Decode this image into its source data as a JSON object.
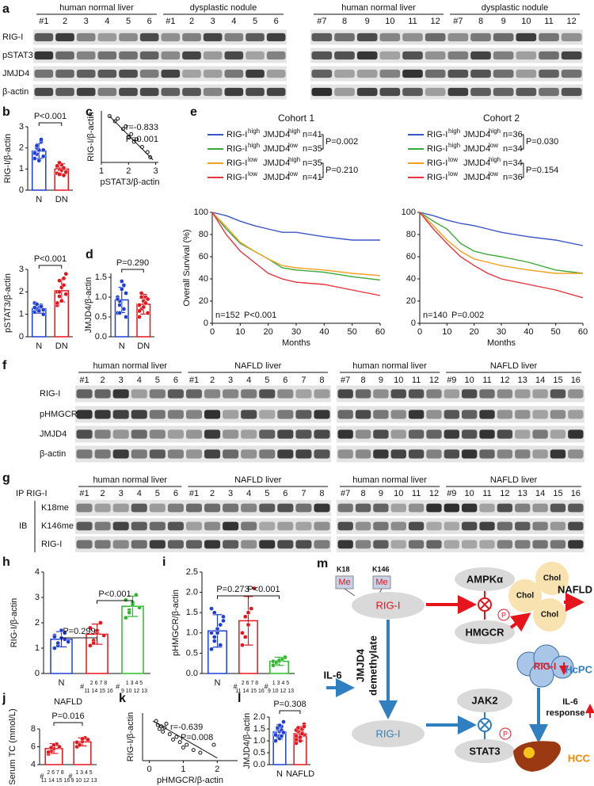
{
  "letters": [
    "a",
    "b",
    "c",
    "d",
    "e",
    "f",
    "g",
    "h",
    "i",
    "j",
    "k",
    "l",
    "m"
  ],
  "blots": {
    "a_left": {
      "headers": [
        "human normal liver",
        "dysplastic nodule"
      ],
      "lanes": [
        [
          "#1",
          "2",
          "3",
          "4",
          "5",
          "6"
        ],
        [
          "#1",
          "2",
          "3",
          "4",
          "5",
          "6"
        ]
      ],
      "rows": [
        "RIG-I",
        "pSTAT3",
        "JMJD4",
        "β-actin"
      ]
    },
    "a_right": {
      "headers": [
        "human normal liver",
        "dysplastic nodule"
      ],
      "lanes": [
        [
          "#7",
          "8",
          "9",
          "10",
          "11",
          "12"
        ],
        [
          "#7",
          "8",
          "9",
          "10",
          "11",
          "12"
        ]
      ]
    },
    "f_left": {
      "headers": [
        "human normal liver",
        "NAFLD liver"
      ],
      "lanes": [
        [
          "#1",
          "2",
          "3",
          "4",
          "5",
          "6"
        ],
        [
          "#1",
          "2",
          "3",
          "4",
          "5",
          "6",
          "7",
          "8"
        ]
      ],
      "rows": [
        "RIG-I",
        "pHMGCR",
        "JMJD4",
        "β-actin"
      ]
    },
    "f_right": {
      "headers": [
        "human normal liver",
        "NAFLD liver"
      ],
      "lanes": [
        [
          "#7",
          "8",
          "9",
          "10",
          "11",
          "12"
        ],
        [
          "#9",
          "10",
          "11",
          "12",
          "13",
          "14",
          "15",
          "16"
        ]
      ]
    },
    "g_left": {
      "headers": [
        "human normal liver",
        "NAFLD liver"
      ],
      "lanes": [
        [
          "#1",
          "2",
          "3",
          "4",
          "5",
          "6"
        ],
        [
          "#1",
          "2",
          "3",
          "4",
          "5",
          "6",
          "7",
          "8"
        ]
      ],
      "rows": [
        "K18me",
        "K146me",
        "RIG-I"
      ],
      "ip_label": "IP RIG-I",
      "ib_label": "IB"
    },
    "g_right": {
      "headers": [
        "human normal liver",
        "NAFLD liver"
      ],
      "lanes": [
        [
          "#7",
          "8",
          "9",
          "10",
          "11",
          "12"
        ],
        [
          "#9",
          "10",
          "11",
          "12",
          "13",
          "14",
          "15",
          "16"
        ]
      ]
    }
  },
  "chart_data": [
    {
      "type": "bar",
      "ylabel": "RIG-I/β-actin",
      "categories": [
        "N",
        "DN"
      ],
      "values": [
        1.85,
        1.0
      ],
      "errors": [
        0.35,
        0.25
      ],
      "colors": [
        "#1f3fd6",
        "#e8141c"
      ],
      "points": [
        [
          1.5,
          1.7,
          1.9,
          2.3,
          1.6,
          1.8,
          2.0,
          1.4,
          2.4,
          1.9,
          1.75,
          2.1
        ],
        [
          0.8,
          1.0,
          1.2,
          0.7,
          0.9,
          1.1,
          1.3,
          0.95,
          1.05,
          0.85,
          1.15,
          0.75
        ]
      ],
      "ylim": [
        0,
        3
      ],
      "yticks": [
        0,
        1,
        2,
        3
      ],
      "annotations": [
        "P<0.001"
      ]
    },
    {
      "type": "scatter",
      "ylabel": "RIG-I/β-actin",
      "xlabel": "pSTAT3/β-actin",
      "x": [
        1.3,
        1.5,
        1.6,
        1.8,
        1.9,
        2.0,
        2.1,
        2.2,
        2.3,
        2.5,
        2.7,
        2.8
      ],
      "values": [
        2.4,
        2.2,
        2.3,
        1.9,
        2.0,
        1.6,
        1.7,
        1.4,
        1.5,
        1.2,
        1.0,
        0.8
      ],
      "fit_line": {
        "x": [
          1.3,
          2.9
        ],
        "values": [
          2.4,
          0.7
        ]
      },
      "xlim": [
        1,
        3.1
      ],
      "ylim": [
        0.6,
        2.6
      ],
      "xticks": [
        1,
        2,
        3
      ],
      "annotations": [
        "r=-0.833",
        "P=0.001"
      ]
    },
    {
      "type": "bar",
      "ylabel": "pSTAT3/β-actin",
      "categories": [
        "N",
        "DN"
      ],
      "values": [
        1.25,
        2.05
      ],
      "errors": [
        0.2,
        0.5
      ],
      "colors": [
        "#1f3fd6",
        "#e8141c"
      ],
      "points": [
        [
          1.1,
          1.2,
          1.3,
          1.4,
          1.0,
          1.5,
          1.25,
          1.15,
          1.35,
          1.2,
          1.3,
          1.45
        ],
        [
          1.4,
          1.8,
          2.2,
          2.6,
          1.9,
          2.0,
          2.5,
          1.6,
          2.3,
          2.8,
          1.5,
          2.0
        ]
      ],
      "ylim": [
        0,
        3
      ],
      "yticks": [
        0,
        1,
        2,
        3
      ],
      "annotations": [
        "P<0.001"
      ]
    },
    {
      "type": "bar",
      "ylabel": "JMJD4/β-actin",
      "categories": [
        "N",
        "DN"
      ],
      "values": [
        0.93,
        0.82
      ],
      "errors": [
        0.32,
        0.25
      ],
      "colors": [
        "#1f3fd6",
        "#e8141c"
      ],
      "points": [
        [
          0.6,
          0.9,
          1.2,
          1.3,
          0.5,
          1.0,
          0.8,
          1.4,
          0.7,
          1.1,
          0.95,
          0.6
        ],
        [
          0.5,
          0.7,
          0.9,
          1.0,
          0.6,
          0.8,
          1.1,
          0.75,
          0.85,
          0.95,
          0.65,
          1.0
        ]
      ],
      "ylim": [
        0,
        1.6
      ],
      "yticks": [
        {
          "value": 0,
          "label": "0.0"
        },
        {
          "value": 0.5,
          "label": "0.5"
        },
        {
          "value": 1,
          "label": "1.0"
        },
        {
          "value": 1.5,
          "label": "1.5"
        }
      ],
      "annotations": [
        "P=0.290"
      ]
    },
    {
      "type": "line",
      "title": "Cohort 1",
      "ylabel": "Overall Survival (%)",
      "xlabel": "Months",
      "x": [
        0,
        5,
        10,
        15,
        20,
        25,
        30,
        40,
        50,
        60
      ],
      "xlim": [
        0,
        60
      ],
      "xticks": [
        0,
        10,
        20,
        30,
        40,
        50,
        60
      ],
      "ylim": [
        0,
        100
      ],
      "yticks": [
        0,
        20,
        40,
        60,
        80,
        100
      ],
      "series": [
        {
          "name": [
            "RIG-I",
            "high",
            "JMJD4",
            "high"
          ],
          "n_label": "n=41",
          "color": "#3b55c8",
          "values": [
            100,
            97,
            92,
            88,
            85,
            82,
            82,
            78,
            75,
            75
          ]
        },
        {
          "name": [
            "RIG-I",
            "high",
            "JMJD4",
            "low"
          ],
          "n_label": "n=35",
          "color": "#3aa83a",
          "values": [
            100,
            85,
            72,
            65,
            58,
            50,
            48,
            46,
            42,
            39
          ]
        },
        {
          "name": [
            "RIG-I",
            "low",
            "JMJD4",
            "high"
          ],
          "n_label": "n=35",
          "color": "#f0a020",
          "values": [
            100,
            87,
            73,
            65,
            58,
            52,
            50,
            48,
            45,
            43
          ]
        },
        {
          "name": [
            "RIG-I",
            "low",
            "JMJD4",
            "low"
          ],
          "n_label": "n=41",
          "color": "#e8323c",
          "values": [
            100,
            80,
            65,
            55,
            45,
            40,
            37,
            35,
            30,
            25
          ]
        }
      ],
      "annotations": [
        "P=0.002",
        "P=0.210",
        "n=152",
        "P<0.001"
      ]
    },
    {
      "type": "line",
      "title": "Cohort 2",
      "xlabel": "Months",
      "x": [
        0,
        5,
        10,
        15,
        20,
        25,
        30,
        40,
        50,
        60
      ],
      "xlim": [
        0,
        60
      ],
      "xticks": [
        0,
        10,
        20,
        30,
        40,
        50,
        60
      ],
      "ylim": [
        0,
        100
      ],
      "yticks": [
        0,
        20,
        40,
        60,
        80,
        100
      ],
      "series": [
        {
          "name": [
            "RIG-I",
            "high",
            "JMJD4",
            "high"
          ],
          "n_label": "n=36",
          "color": "#3b55c8",
          "values": [
            100,
            97,
            93,
            90,
            88,
            85,
            82,
            78,
            75,
            70
          ]
        },
        {
          "name": [
            "RIG-I",
            "high",
            "JMJD4",
            "low"
          ],
          "n_label": "n=34",
          "color": "#3aa83a",
          "values": [
            100,
            92,
            85,
            72,
            65,
            62,
            60,
            55,
            48,
            45
          ]
        },
        {
          "name": [
            "RIG-I",
            "low",
            "JMJD4",
            "high"
          ],
          "n_label": "n=34",
          "color": "#f0a020",
          "values": [
            100,
            88,
            75,
            65,
            58,
            55,
            52,
            48,
            45,
            45
          ]
        },
        {
          "name": [
            "RIG-I",
            "low",
            "JMJD4",
            "low"
          ],
          "n_label": "n=36",
          "color": "#e8323c",
          "values": [
            100,
            85,
            72,
            60,
            52,
            45,
            40,
            35,
            30,
            23
          ]
        }
      ],
      "annotations": [
        "P=0.030",
        "P=0.154",
        "n=140",
        "P=0.002"
      ]
    },
    {
      "type": "bar",
      "ylabel": "RIG-I/β-actin",
      "categories": [
        "N",
        [
          "#",
          "2 6 7 8",
          "11 14 15 16"
        ],
        [
          "#",
          "1 3 4 5",
          "9 10 12 13"
        ]
      ],
      "values": [
        1.35,
        1.55,
        2.65
      ],
      "errors": [
        0.3,
        0.4,
        0.4
      ],
      "colors": [
        "#1f3fd6",
        "#e8141c",
        "#2db82d"
      ],
      "points": [
        [
          1.0,
          1.2,
          1.4,
          1.6,
          1.3,
          1.5,
          1.1,
          1.7,
          1.35,
          1.25,
          1.45,
          1.2
        ],
        [
          1.1,
          1.3,
          1.6,
          2.0,
          1.5,
          1.8,
          1.2,
          1.7
        ],
        [
          2.2,
          2.5,
          2.8,
          3.1,
          2.6,
          2.9,
          2.4,
          2.7
        ]
      ],
      "ylim": [
        0,
        4
      ],
      "yticks": [
        0,
        1,
        2,
        3,
        4
      ],
      "annotations": [
        "P=0.299",
        "P<0.001"
      ]
    },
    {
      "type": "bar",
      "ylabel": "pHMGCR/β-actin",
      "categories": [
        "N",
        [
          "#",
          "2 6 7 8",
          "11 14 15 16"
        ],
        [
          "#",
          "1 3 4 5",
          "9 10 12 13"
        ]
      ],
      "values": [
        1.05,
        1.3,
        0.3
      ],
      "errors": [
        0.4,
        0.6,
        0.1
      ],
      "colors": [
        "#1f3fd6",
        "#e8141c",
        "#2db82d"
      ],
      "points": [
        [
          0.6,
          0.8,
          1.0,
          1.2,
          1.4,
          1.6,
          0.9,
          1.1,
          0.7,
          1.3,
          1.0,
          1.5
        ],
        [
          0.7,
          0.9,
          1.2,
          1.6,
          2.1,
          1.0,
          1.4,
          1.5
        ],
        [
          0.2,
          0.25,
          0.3,
          0.35,
          0.4,
          0.3,
          0.28,
          0.32
        ]
      ],
      "ylim": [
        0,
        2.5
      ],
      "yticks": [
        {
          "value": 0,
          "label": "0.0"
        },
        {
          "value": 0.5,
          "label": "0.5"
        },
        {
          "value": 1,
          "label": "1.0"
        },
        {
          "value": 1.5,
          "label": "1.5"
        },
        {
          "value": 2,
          "label": "2.0"
        },
        {
          "value": 2.5,
          "label": "2.5"
        }
      ],
      "annotations": [
        "P=0.273",
        "P<0.001"
      ]
    },
    {
      "type": "bar",
      "title": "NAFLD",
      "ylabel": "Serum TC (mmol/L)",
      "categories": [
        [
          "#",
          "2 6 7 8",
          "11 14 15 16"
        ],
        [
          "#",
          "1 3 4 5",
          "9 10 12 13"
        ]
      ],
      "values": [
        5.8,
        6.55
      ],
      "errors": [
        0.55,
        0.45
      ],
      "colors": [
        "#e8141c",
        "#e8141c"
      ],
      "points": [
        [
          5.2,
          5.5,
          5.8,
          6.3,
          6.0,
          5.4,
          5.9,
          6.2
        ],
        [
          6.0,
          6.3,
          6.6,
          7.0,
          6.8,
          6.5,
          6.2,
          6.9
        ]
      ],
      "ylim": [
        4,
        8
      ],
      "yticks": [
        4,
        6,
        8
      ],
      "annotations": [
        "P=0.016"
      ]
    },
    {
      "type": "scatter",
      "ylabel": "RIG-I/β-actin",
      "xlabel": "pHMGCR/β-actin",
      "x": [
        0.2,
        0.3,
        0.35,
        0.4,
        0.5,
        0.6,
        0.7,
        0.8,
        0.9,
        1.0,
        1.1,
        1.3,
        1.5,
        1.9,
        0.45,
        0.25
      ],
      "values": [
        2.7,
        2.4,
        2.5,
        2.3,
        2.6,
        2.2,
        2.0,
        2.1,
        1.9,
        1.7,
        1.8,
        1.6,
        1.5,
        1.8,
        2.45,
        2.55
      ],
      "fit_line": {
        "x": [
          0.1,
          2.0
        ],
        "values": [
          2.7,
          1.3
        ]
      },
      "xlim": [
        -0.2,
        2.6
      ],
      "ylim": [
        1.2,
        3.0
      ],
      "xticks": [
        0,
        1,
        2
      ],
      "annotations": [
        "r=-0.639",
        "P=0.008"
      ]
    },
    {
      "type": "bar",
      "ylabel": "JMJD4/β-actin",
      "categories": [
        "N",
        "NAFLD"
      ],
      "values": [
        1.38,
        1.3
      ],
      "errors": [
        0.3,
        0.3
      ],
      "colors": [
        "#1f3fd6",
        "#e8141c"
      ],
      "points": [
        [
          1.0,
          1.2,
          1.4,
          1.6,
          1.8,
          1.3,
          1.5,
          1.1,
          1.45,
          1.35,
          1.25,
          1.55,
          1.65,
          1.2
        ],
        [
          0.9,
          1.1,
          1.3,
          1.5,
          1.7,
          1.2,
          1.4,
          1.0,
          1.35,
          1.25,
          1.45,
          1.55,
          1.15,
          1.3,
          1.6,
          1.05
        ]
      ],
      "ylim": [
        0,
        2
      ],
      "yticks": [
        {
          "value": 0,
          "label": "0.0"
        },
        {
          "value": 0.5,
          "label": "0.5"
        },
        {
          "value": 1,
          "label": "1.0"
        },
        {
          "value": 1.5,
          "label": "1.5"
        },
        {
          "value": 2,
          "label": "2.0"
        }
      ],
      "annotations": [
        "P=0.308"
      ]
    }
  ],
  "diagram": {
    "k18": "K18",
    "k146": "K146",
    "me": [
      "Me",
      "Me"
    ],
    "rig_i": [
      "RIG-I",
      "RIG-I",
      "RIG-I"
    ],
    "ampk": "AMPKα",
    "hmgcr": "HMGCR",
    "chol": [
      "Chol",
      "Chol",
      "Chol"
    ],
    "nafld": "NAFLD",
    "p": [
      "P",
      "P"
    ],
    "il6": "IL-6",
    "jmjd4": "JMJD4",
    "demethylate": "demethylate",
    "jak2": "JAK2",
    "stat3": "STAT3",
    "hcpc": "HcPC",
    "il6_response": [
      "IL-6",
      "response"
    ],
    "hcc": "HCC"
  }
}
